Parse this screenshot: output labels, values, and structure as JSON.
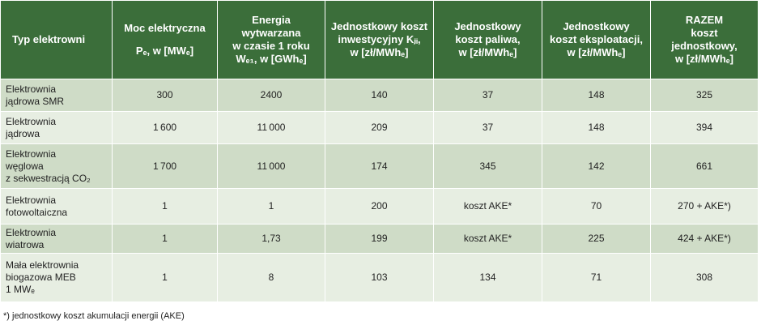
{
  "header": {
    "type": "Typ elektrowni",
    "power": [
      "Moc elektryczna",
      "Pₑ, w [MWₑ]"
    ],
    "energy": [
      "Energia",
      "wytwarzana",
      "w czasie 1 roku",
      "Wₑ₁, w [GWhₑ]"
    ],
    "invest": [
      "Jednostkowy koszt",
      "inwestycyjny Kⱼᵢ,",
      "w [zł/MWhₑ]"
    ],
    "fuel": [
      "Jednostkowy",
      "koszt paliwa,",
      "w [zł/MWhₑ]"
    ],
    "oper": [
      "Jednostkowy",
      "koszt eksploatacji,",
      "w [zł/MWhₑ]"
    ],
    "total": [
      "RAZEM",
      "koszt",
      "jednostkowy,",
      "w [zł/MWhₑ]"
    ]
  },
  "rows": [
    {
      "type": [
        "Elektrownia",
        "jądrowa SMR"
      ],
      "power": "300",
      "energy": "2400",
      "invest": "140",
      "fuel": "37",
      "oper": "148",
      "total": "325"
    },
    {
      "type": [
        "Elektrownia",
        "jądrowa"
      ],
      "power": "1 600",
      "energy": "11 000",
      "invest": "209",
      "fuel": "37",
      "oper": "148",
      "total": "394"
    },
    {
      "type": [
        "Elektrownia",
        "węglowa",
        "z sekwestracją CO₂"
      ],
      "power": "1 700",
      "energy": "11 000",
      "invest": "174",
      "fuel": "345",
      "oper": "142",
      "total": "661"
    },
    {
      "type": [
        "Elektrownia",
        "fotowoltaiczna"
      ],
      "power": "1",
      "energy": "1",
      "invest": "200",
      "fuel": "koszt AKE*",
      "oper": "70",
      "total": "270 + AKE*)"
    },
    {
      "type": [
        "Elektrownia",
        "wiatrowa"
      ],
      "power": "1",
      "energy": "1,73",
      "invest": "199",
      "fuel": "koszt AKE*",
      "oper": "225",
      "total": "424 + AKE*)"
    },
    {
      "type": [
        "Mała elektrownia",
        "biogazowa MEB",
        "1 MWₑ"
      ],
      "power": "1",
      "energy": "8",
      "invest": "103",
      "fuel": "134",
      "oper": "71",
      "total": "308"
    }
  ],
  "footnote": "*) jednostkowy koszt akumulacji energii (AKE)"
}
